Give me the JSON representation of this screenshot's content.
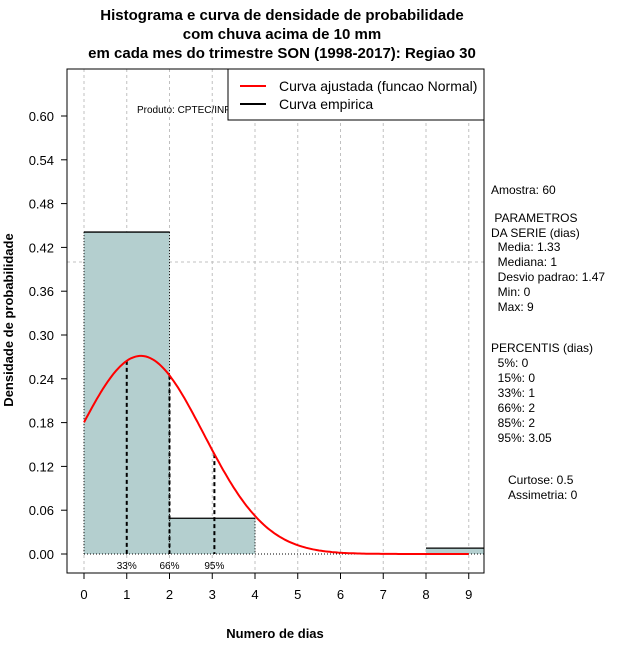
{
  "chart_data": {
    "type": "bar",
    "title": [
      "Histograma e curva de densidade de probabilidade",
      "com chuva acima de 10 mm",
      "em cada mes do trimestre SON (1998-2017): Regiao 30"
    ],
    "xlabel": "Numero de dias",
    "ylabel": "Densidade de probabilidade",
    "xlim": [
      -0.4,
      9.35
    ],
    "ylim": [
      -0.03,
      0.66
    ],
    "xticks": [
      0,
      1,
      2,
      3,
      4,
      5,
      6,
      7,
      8,
      9
    ],
    "yticks": [
      "0.00",
      "0.06",
      "0.12",
      "0.18",
      "0.24",
      "0.30",
      "0.36",
      "0.42",
      "0.48",
      "0.54",
      "0.60"
    ],
    "bins": [
      {
        "from": 0,
        "to": 2,
        "density": 0.441
      },
      {
        "from": 2,
        "to": 4,
        "density": 0.049
      },
      {
        "from": 4,
        "to": 6,
        "density": 0
      },
      {
        "from": 6,
        "to": 8,
        "density": 0
      },
      {
        "from": 8,
        "to": 10,
        "density": 0.008
      }
    ],
    "reference_line": 0.4,
    "normal_fit": {
      "mean": 1.33,
      "sd": 1.47,
      "from": 0,
      "to": 9
    },
    "percentile_lines": [
      {
        "label": "33%",
        "x": 1
      },
      {
        "label": "66%",
        "x": 2
      },
      {
        "label": "95%",
        "x": 3.05
      }
    ],
    "annotation": "Produto: CPTEC/INPE",
    "legend": {
      "position": "top-right",
      "entries": [
        {
          "label": "Curva ajustada (funcao Normal)",
          "color": "#ff0000"
        },
        {
          "label": "Curva empirica",
          "color": "#000000"
        }
      ]
    },
    "bar_color": "#b4cfcf"
  },
  "side": {
    "amostra": "Amostra: 60",
    "param_title": " PARAMETROS\nDA SERIE (dias)",
    "params": "  Media: 1.33\n  Mediana: 1\n  Desvio padrao: 1.47\n  Min: 0\n  Max: 9",
    "perc_title": "PERCENTIS (dias)",
    "percs": "  5%: 0\n  15%: 0\n  33%: 1\n  66%: 2\n  85%: 2\n  95%: 3.05",
    "shape": "Curtose: 0.5\nAssimetria: 0"
  }
}
